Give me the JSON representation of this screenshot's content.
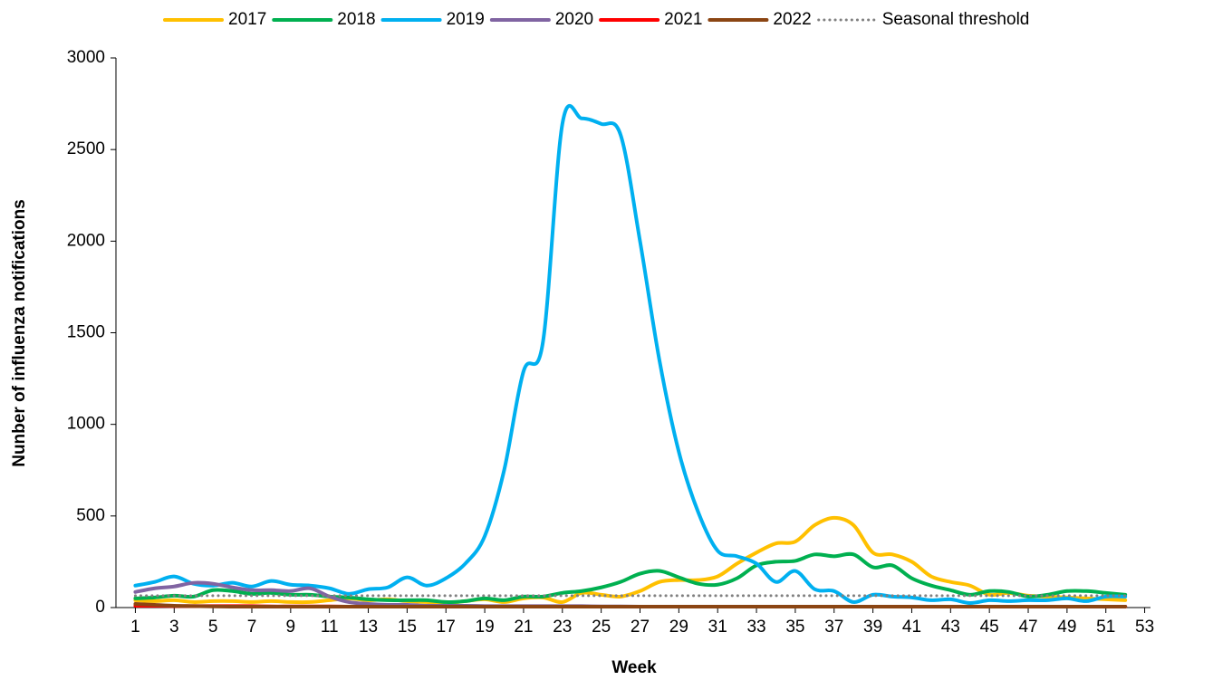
{
  "chart_data": {
    "type": "line",
    "xlabel": "Week",
    "ylabel": "Nunber of influenza notifications",
    "x": [
      1,
      2,
      3,
      4,
      5,
      6,
      7,
      8,
      9,
      10,
      11,
      12,
      13,
      14,
      15,
      16,
      17,
      18,
      19,
      20,
      21,
      22,
      23,
      24,
      25,
      26,
      27,
      28,
      29,
      30,
      31,
      32,
      33,
      34,
      35,
      36,
      37,
      38,
      39,
      40,
      41,
      42,
      43,
      44,
      45,
      46,
      47,
      48,
      49,
      50,
      51,
      52
    ],
    "xlim": [
      0,
      53.3
    ],
    "xticks": [
      1,
      3,
      5,
      7,
      9,
      11,
      13,
      15,
      17,
      19,
      21,
      23,
      25,
      27,
      29,
      31,
      33,
      35,
      37,
      39,
      41,
      43,
      45,
      47,
      49,
      51,
      53
    ],
    "ylim": [
      0,
      3000
    ],
    "yticks": [
      0,
      500,
      1000,
      1500,
      2000,
      2500,
      3000
    ],
    "legend": "top",
    "series": [
      {
        "name": "2017",
        "color": "#ffc000",
        "values": [
          40,
          35,
          40,
          30,
          35,
          35,
          30,
          35,
          30,
          30,
          40,
          50,
          40,
          45,
          35,
          30,
          25,
          35,
          45,
          30,
          50,
          55,
          30,
          80,
          70,
          60,
          90,
          140,
          150,
          150,
          170,
          240,
          300,
          350,
          360,
          450,
          490,
          450,
          300,
          290,
          250,
          170,
          140,
          120,
          70,
          80,
          65,
          60,
          55,
          50,
          45,
          40
        ]
      },
      {
        "name": "2018",
        "color": "#00b050",
        "values": [
          50,
          55,
          65,
          60,
          95,
          90,
          75,
          80,
          70,
          70,
          60,
          55,
          45,
          40,
          40,
          40,
          30,
          35,
          50,
          40,
          60,
          60,
          80,
          90,
          110,
          140,
          185,
          200,
          165,
          130,
          125,
          160,
          230,
          250,
          255,
          290,
          280,
          290,
          220,
          230,
          160,
          120,
          95,
          70,
          90,
          85,
          60,
          70,
          90,
          90,
          80,
          70
        ]
      },
      {
        "name": "2019",
        "color": "#00b0f0",
        "values": [
          120,
          140,
          170,
          130,
          120,
          135,
          115,
          145,
          125,
          120,
          105,
          75,
          100,
          110,
          165,
          120,
          160,
          240,
          390,
          750,
          1290,
          1450,
          2640,
          2670,
          2640,
          2580,
          2000,
          1350,
          850,
          520,
          310,
          280,
          240,
          140,
          200,
          100,
          90,
          30,
          70,
          60,
          55,
          40,
          45,
          25,
          40,
          35,
          40,
          40,
          50,
          35,
          60,
          60
        ]
      },
      {
        "name": "2020",
        "color": "#8064a2",
        "values": [
          85,
          105,
          115,
          135,
          130,
          110,
          95,
          95,
          90,
          105,
          60,
          30,
          20,
          15,
          15,
          10,
          10,
          10,
          8,
          8,
          8,
          8,
          8,
          8,
          6,
          6,
          5,
          5,
          5,
          5,
          5,
          5,
          5,
          5,
          5,
          5,
          5,
          5,
          5,
          5,
          5,
          5,
          5,
          5,
          5,
          5,
          5,
          5,
          5,
          5,
          5,
          5
        ]
      },
      {
        "name": "2021",
        "color": "#ff0000",
        "values": [
          10,
          10,
          8,
          8,
          8,
          8,
          8,
          6,
          6,
          6,
          6,
          5,
          5,
          5,
          5,
          5,
          5,
          5,
          5,
          5,
          5,
          5,
          5,
          5,
          5,
          5,
          5,
          5,
          5,
          5,
          5,
          5,
          5,
          5,
          5,
          5,
          5,
          5,
          5,
          5,
          5,
          5,
          5,
          5,
          5,
          5,
          5,
          5,
          5,
          5,
          5,
          5
        ]
      },
      {
        "name": "2022",
        "color": "#8b4513",
        "values": [
          20,
          15,
          10,
          8,
          6,
          5,
          5,
          5,
          5,
          5,
          5,
          5,
          5,
          5,
          5,
          5,
          5,
          5,
          5,
          5,
          5,
          5,
          5,
          5,
          5,
          5,
          5,
          5,
          5,
          5,
          5,
          5,
          5,
          5,
          5,
          5,
          5,
          5,
          5,
          5,
          5,
          5,
          5,
          5,
          5,
          5,
          5,
          5,
          5,
          5,
          5,
          5
        ]
      },
      {
        "name": "Seasonal threshold",
        "color": "#808080",
        "dash": "dotted",
        "values": [
          65,
          65,
          65,
          65,
          65,
          65,
          65,
          65,
          65,
          65,
          65,
          65,
          65,
          65,
          65,
          65,
          65,
          65,
          65,
          65,
          65,
          65,
          65,
          65,
          65,
          65,
          65,
          65,
          65,
          65,
          65,
          65,
          65,
          65,
          65,
          65,
          65,
          65,
          65,
          65,
          65,
          65,
          65,
          65,
          65,
          65,
          65,
          65,
          65,
          65,
          65,
          65
        ]
      }
    ]
  }
}
